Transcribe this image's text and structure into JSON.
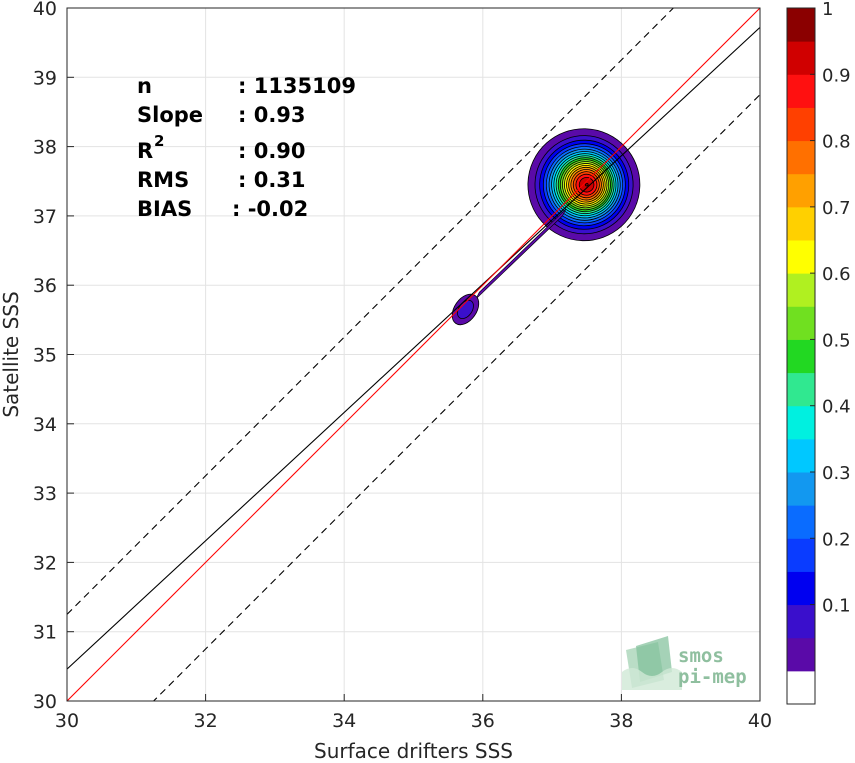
{
  "chart_data": {
    "type": "contour",
    "xlabel": "Surface drifters SSS",
    "ylabel": "Satellite SSS",
    "xlim": [
      30,
      40
    ],
    "ylim": [
      30,
      40
    ],
    "xticks": [
      "30",
      "32",
      "34",
      "36",
      "38",
      "40"
    ],
    "yticks": [
      "30",
      "31",
      "32",
      "33",
      "34",
      "35",
      "36",
      "37",
      "38",
      "39",
      "40"
    ],
    "grid": true,
    "stats": [
      {
        "label": "n",
        "value": ": 1135109"
      },
      {
        "label": "Slope",
        "value": ": 0.93"
      },
      {
        "label": "R",
        "sup": "2",
        "value": ": 0.90"
      },
      {
        "label": "RMS",
        "value": ": 0.31"
      },
      {
        "label": "BIAS",
        "value": ": -0.02"
      }
    ],
    "lines": {
      "identity": {
        "x": [
          30,
          40
        ],
        "y": [
          30,
          40
        ],
        "color": "#ff0000"
      },
      "fit": {
        "x": [
          30,
          40
        ],
        "y": [
          30.46,
          39.72
        ],
        "color": "#000000"
      },
      "upper_bound": {
        "x": [
          30,
          40
        ],
        "y": [
          31.25,
          41.25
        ],
        "color": "#000000",
        "dash": true
      },
      "lower_bound": {
        "x": [
          30,
          40
        ],
        "y": [
          28.75,
          38.75
        ],
        "color": "#000000",
        "dash": true
      }
    },
    "density_peaks": [
      {
        "x": 37.5,
        "y": 37.45,
        "max": 1.0
      },
      {
        "x": 35.75,
        "y": 35.65,
        "max": 0.12
      }
    ],
    "colorbar": {
      "min": 0,
      "max": 1,
      "step": 0.05,
      "ticks": [
        "0.1",
        "0.2",
        "0.3",
        "0.4",
        "0.5",
        "0.6",
        "0.7",
        "0.8",
        "0.9",
        "1"
      ],
      "colors": [
        "#ffffff",
        "#5a0aa8",
        "#3a0fcc",
        "#0000f0",
        "#0a3cff",
        "#0a6cff",
        "#1298f0",
        "#00c8ff",
        "#00f0e0",
        "#30e890",
        "#22d822",
        "#70e020",
        "#b0f020",
        "#ffff00",
        "#ffd000",
        "#ffa000",
        "#ff7000",
        "#ff4000",
        "#ff1010",
        "#d00000",
        "#8b0000"
      ]
    },
    "watermark": {
      "line1": "smos",
      "line2": "pi-mep"
    }
  }
}
